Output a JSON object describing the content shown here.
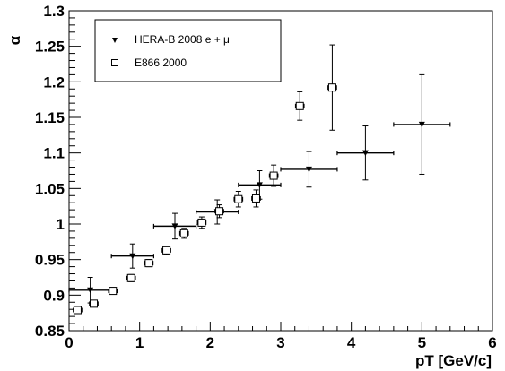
{
  "chart_data": {
    "type": "scatter",
    "xlabel": "pT [GeV/c]",
    "ylabel": "α",
    "xlim": [
      0,
      6
    ],
    "ylim": [
      0.85,
      1.3
    ],
    "x_ticks": [
      0,
      1,
      2,
      3,
      4,
      5,
      6
    ],
    "y_ticks": [
      0.85,
      0.9,
      0.95,
      1,
      1.05,
      1.1,
      1.15,
      1.2,
      1.25,
      1.3
    ],
    "y_tick_labels": [
      "0.85",
      "0.9",
      "0.95",
      "1",
      "1.05",
      "1.1",
      "1.15",
      "1.2",
      "1.25",
      "1.3"
    ],
    "x_tick_labels": [
      "0",
      "1",
      "2",
      "3",
      "4",
      "5",
      "6"
    ],
    "legend_position": "top-left",
    "grid": false,
    "series": [
      {
        "name": "HERA-B 2008 e + μ",
        "marker": "triangle-down",
        "color": "#000000",
        "points": [
          {
            "x": 0.3,
            "y": 0.907,
            "xerr": 0.3,
            "yerr": 0.018
          },
          {
            "x": 0.9,
            "y": 0.955,
            "xerr": 0.3,
            "yerr": 0.017
          },
          {
            "x": 1.5,
            "y": 0.997,
            "xerr": 0.3,
            "yerr": 0.018
          },
          {
            "x": 2.1,
            "y": 1.017,
            "xerr": 0.3,
            "yerr": 0.017
          },
          {
            "x": 2.7,
            "y": 1.055,
            "xerr": 0.3,
            "yerr": 0.02
          },
          {
            "x": 3.4,
            "y": 1.077,
            "xerr": 0.4,
            "yerr": 0.025
          },
          {
            "x": 4.2,
            "y": 1.1,
            "xerr": 0.4,
            "yerr": 0.038
          },
          {
            "x": 5.0,
            "y": 1.14,
            "xerr": 0.4,
            "yerr": 0.07
          }
        ]
      },
      {
        "name": "E866 2000",
        "marker": "open-square",
        "color": "#000000",
        "points": [
          {
            "x": 0.12,
            "y": 0.879,
            "xerr": 0.06,
            "yerr": 0.004
          },
          {
            "x": 0.35,
            "y": 0.888,
            "xerr": 0.06,
            "yerr": 0.004
          },
          {
            "x": 0.62,
            "y": 0.906,
            "xerr": 0.06,
            "yerr": 0.004
          },
          {
            "x": 0.88,
            "y": 0.924,
            "xerr": 0.06,
            "yerr": 0.005
          },
          {
            "x": 1.13,
            "y": 0.945,
            "xerr": 0.06,
            "yerr": 0.005
          },
          {
            "x": 1.38,
            "y": 0.963,
            "xerr": 0.06,
            "yerr": 0.006
          },
          {
            "x": 1.63,
            "y": 0.987,
            "xerr": 0.06,
            "yerr": 0.007
          },
          {
            "x": 1.88,
            "y": 1.002,
            "xerr": 0.06,
            "yerr": 0.008
          },
          {
            "x": 2.13,
            "y": 1.018,
            "xerr": 0.06,
            "yerr": 0.009
          },
          {
            "x": 2.4,
            "y": 1.035,
            "xerr": 0.06,
            "yerr": 0.011
          },
          {
            "x": 2.65,
            "y": 1.036,
            "xerr": 0.06,
            "yerr": 0.012
          },
          {
            "x": 2.9,
            "y": 1.068,
            "xerr": 0.06,
            "yerr": 0.015
          },
          {
            "x": 3.27,
            "y": 1.166,
            "xerr": 0.06,
            "yerr": 0.02
          },
          {
            "x": 3.73,
            "y": 1.192,
            "xerr": 0.06,
            "yerr": 0.06
          }
        ]
      }
    ]
  }
}
